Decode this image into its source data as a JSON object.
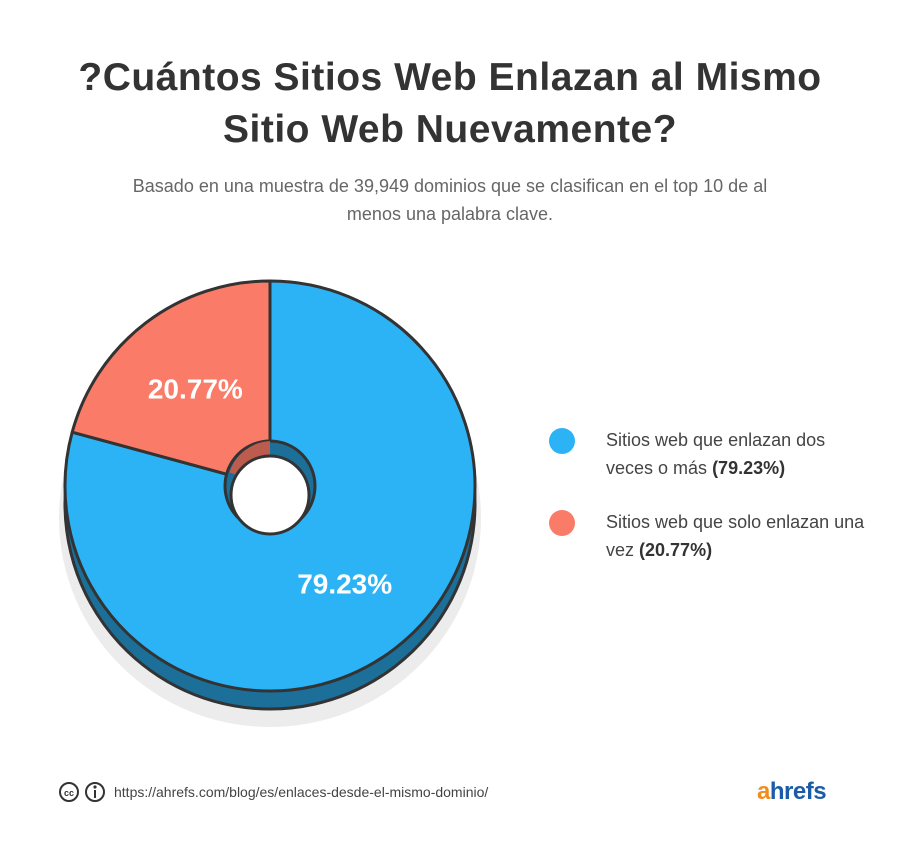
{
  "chart_data": {
    "type": "pie",
    "title": "?Cuántos Sitios Web Enlazan al Mismo Sitio Web Nuevamente?",
    "subtitle": "Basado en una muestra de 39,949 dominios que se clasifican en el top 10 de al menos una palabra clave.",
    "categories": [
      "Sitios web que enlazan dos veces o más",
      "Sitios web que solo enlazan una vez"
    ],
    "values": [
      79.23,
      20.77
    ],
    "value_labels": [
      "79.23%",
      "20.77%"
    ],
    "legend_value_labels": [
      "(79.23%)",
      "(20.77%)"
    ],
    "colors": [
      "#2cb3f5",
      "#fa7b68"
    ],
    "source": "https://ahrefs.com/blog/es/enlaces-desde-el-mismo-dominio/",
    "brand": "ahrefs"
  }
}
